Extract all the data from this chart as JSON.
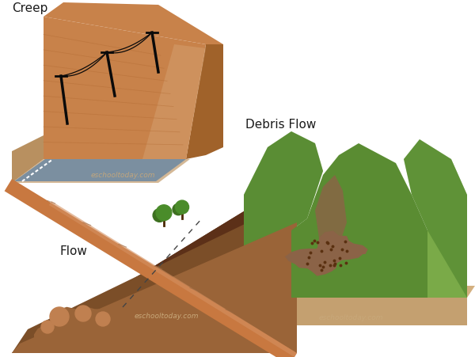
{
  "labels": {
    "creep": "Creep",
    "debris_flow": "Debris Flow",
    "flow": "Flow",
    "watermark": "eschooltoday.com"
  },
  "colors": {
    "background": "#ffffff",
    "soil_orange": "#C8824A",
    "soil_dark": "#A0622A",
    "soil_light": "#D4A070",
    "soil_tan": "#D4B896",
    "soil_side": "#B87840",
    "road_gray": "#7B8FA0",
    "road_stripe": "#ffffff",
    "green_hill": "#6BA040",
    "green_mid": "#5A8C32",
    "green_dark": "#3D6B20",
    "green_valley": "#7AAA48",
    "debris_brown": "#8B6347",
    "debris_dark": "#5a3010",
    "base_tan": "#D4B080",
    "base_front": "#C4A070",
    "text_color": "#1a1a1a",
    "watermark_color": "#C8A87A",
    "pole_color": "#0a0a0a",
    "tree_green": "#4A8C2A",
    "tree_dark": "#3D7020",
    "trunk_color": "#4A2800",
    "flow_darkest": "#5C3018",
    "flow_dark": "#7B4E28",
    "flow_mid": "#9A6438",
    "flow_light": "#C08050",
    "flow_surface": "#C87840"
  }
}
